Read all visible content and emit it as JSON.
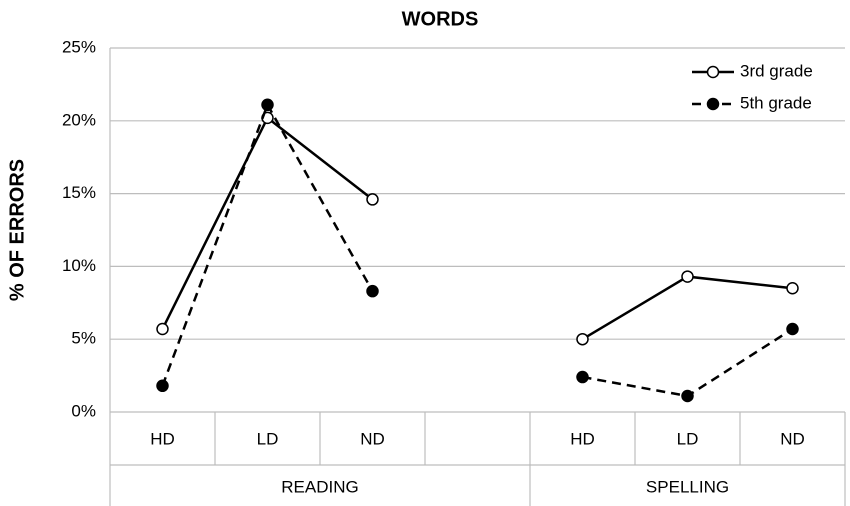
{
  "chart_data": {
    "type": "line",
    "title": "WORDS",
    "y_label": "% OF ERRORS",
    "groups": [
      {
        "name": "READING",
        "categories": [
          "HD",
          "LD",
          "ND",
          null
        ]
      },
      {
        "name": "SPELLING",
        "categories": [
          "HD",
          "LD",
          "ND"
        ]
      }
    ],
    "series": [
      {
        "name": "3rd grade",
        "color": "#000000",
        "line_style": "solid",
        "marker_fill": "#ffffff",
        "values": [
          5.7,
          20.2,
          14.6,
          null,
          5.0,
          9.3,
          8.5
        ]
      },
      {
        "name": "5th grade",
        "color": "#000000",
        "line_style": "dashed",
        "marker_fill": "#000000",
        "values": [
          1.8,
          21.1,
          8.3,
          null,
          2.4,
          1.1,
          5.7
        ]
      }
    ],
    "ylim": [
      0,
      25
    ],
    "yticks": [
      {
        "value": 0,
        "label": "0%"
      },
      {
        "value": 5,
        "label": "5%"
      },
      {
        "value": 10,
        "label": "10%"
      },
      {
        "value": 15,
        "label": "15%"
      },
      {
        "value": 20,
        "label": "20%"
      },
      {
        "value": 25,
        "label": "25%"
      }
    ],
    "grid": true,
    "legend": "top-right"
  }
}
